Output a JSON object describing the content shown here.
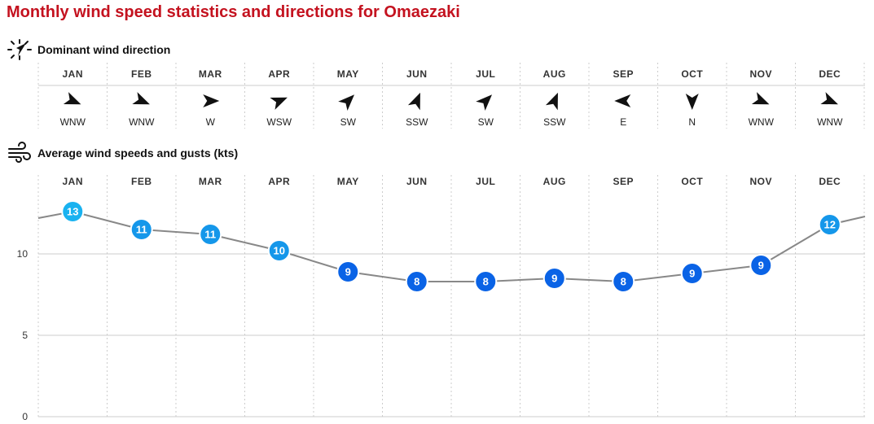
{
  "page": {
    "title": "Monthly wind speed statistics and directions for Omaezaki"
  },
  "direction_section": {
    "title": "Dominant wind direction",
    "icon": "compass-icon"
  },
  "speed_section": {
    "title": "Average wind speeds and gusts (kts)",
    "icon": "wind-icon"
  },
  "months": [
    "JAN",
    "FEB",
    "MAR",
    "APR",
    "MAY",
    "JUN",
    "JUL",
    "AUG",
    "SEP",
    "OCT",
    "NOV",
    "DEC"
  ],
  "directions": [
    {
      "label": "WNW",
      "degrees": 292.5
    },
    {
      "label": "WNW",
      "degrees": 292.5
    },
    {
      "label": "W",
      "degrees": 270
    },
    {
      "label": "WSW",
      "degrees": 247.5
    },
    {
      "label": "SW",
      "degrees": 225
    },
    {
      "label": "SSW",
      "degrees": 202.5
    },
    {
      "label": "SW",
      "degrees": 225
    },
    {
      "label": "SSW",
      "degrees": 202.5
    },
    {
      "label": "E",
      "degrees": 90
    },
    {
      "label": "N",
      "degrees": 0
    },
    {
      "label": "WNW",
      "degrees": 292.5
    },
    {
      "label": "WNW",
      "degrees": 292.5
    }
  ],
  "colors": {
    "title": "#c4121f",
    "line": "#888888",
    "grid": "#cccccc",
    "marker_light": "#19b2f0",
    "marker_mid": "#1597ea",
    "marker_dark": "#0a63e6",
    "arrow": "#111111"
  },
  "chart_data": {
    "type": "line",
    "title": "Average wind speeds and gusts (kts)",
    "categories": [
      "JAN",
      "FEB",
      "MAR",
      "APR",
      "MAY",
      "JUN",
      "JUL",
      "AUG",
      "SEP",
      "OCT",
      "NOV",
      "DEC"
    ],
    "values": [
      12.6,
      11.5,
      11.2,
      10.2,
      8.9,
      8.3,
      8.3,
      8.5,
      8.3,
      8.8,
      9.3,
      11.8
    ],
    "value_labels": [
      "13",
      "11",
      "11",
      "10",
      "9",
      "8",
      "8",
      "9",
      "8",
      "9",
      "9",
      "12"
    ],
    "left_edge_value": 12.2,
    "right_edge_value": 12.3,
    "yticks": [
      0,
      5,
      10
    ],
    "ylim": [
      0,
      15
    ],
    "grid": true,
    "legend": "none"
  }
}
